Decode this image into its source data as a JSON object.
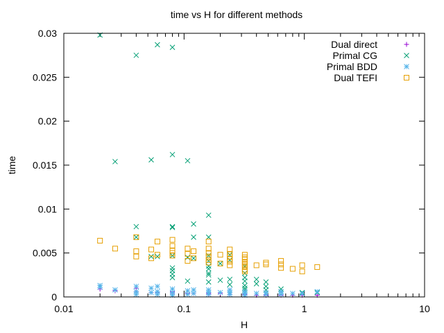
{
  "chart_data": {
    "type": "scatter",
    "title": "time vs H for different methods",
    "xlabel": "H",
    "ylabel": "time",
    "xscale": "log",
    "xlim": [
      0.01,
      10
    ],
    "ylim": [
      0,
      0.03
    ],
    "x_ticks": [
      {
        "value": 0.01,
        "label": "0.01"
      },
      {
        "value": 0.1,
        "label": "0.1"
      },
      {
        "value": 1,
        "label": "1"
      },
      {
        "value": 10,
        "label": "10"
      }
    ],
    "y_ticks": [
      {
        "value": 0,
        "label": "0"
      },
      {
        "value": 0.005,
        "label": "0.005"
      },
      {
        "value": 0.01,
        "label": "0.01"
      },
      {
        "value": 0.015,
        "label": "0.015"
      },
      {
        "value": 0.02,
        "label": "0.02"
      },
      {
        "value": 0.025,
        "label": "0.025"
      },
      {
        "value": 0.03,
        "label": "0.03"
      }
    ],
    "legend": "top-right",
    "grid": false,
    "series": [
      {
        "name": "Dual direct",
        "marker": "plus",
        "color": "#9400d3",
        "points": [
          [
            0.02,
            0.0009
          ],
          [
            0.0267,
            0.0007
          ],
          [
            0.04,
            0.0006
          ],
          [
            0.04,
            0.001
          ],
          [
            0.0533,
            0.0005
          ],
          [
            0.06,
            0.0005
          ],
          [
            0.08,
            0.0006
          ],
          [
            0.08,
            0.0004
          ],
          [
            0.107,
            0.0004
          ],
          [
            0.12,
            0.0004
          ],
          [
            0.16,
            0.0004
          ],
          [
            0.16,
            0.0003
          ],
          [
            0.2,
            0.0004
          ],
          [
            0.24,
            0.0003
          ],
          [
            0.32,
            0.0003
          ],
          [
            0.32,
            0.0002
          ],
          [
            0.4,
            0.0002
          ],
          [
            0.48,
            0.0002
          ],
          [
            0.64,
            0.0002
          ],
          [
            0.8,
            0.0002
          ],
          [
            0.96,
            0.0002
          ],
          [
            1.28,
            0.0002
          ]
        ]
      },
      {
        "name": "Primal CG",
        "marker": "cross",
        "color": "#009e73",
        "points": [
          [
            0.02,
            0.0298
          ],
          [
            0.0267,
            0.0154
          ],
          [
            0.04,
            0.0275
          ],
          [
            0.04,
            0.008
          ],
          [
            0.04,
            0.0068
          ],
          [
            0.0533,
            0.0156
          ],
          [
            0.0533,
            0.0046
          ],
          [
            0.06,
            0.0287
          ],
          [
            0.06,
            0.0046
          ],
          [
            0.08,
            0.0284
          ],
          [
            0.08,
            0.0162
          ],
          [
            0.08,
            0.008
          ],
          [
            0.08,
            0.0079
          ],
          [
            0.08,
            0.0047
          ],
          [
            0.08,
            0.0033
          ],
          [
            0.08,
            0.003
          ],
          [
            0.08,
            0.0026
          ],
          [
            0.08,
            0.0022
          ],
          [
            0.107,
            0.0155
          ],
          [
            0.107,
            0.0045
          ],
          [
            0.107,
            0.0018
          ],
          [
            0.12,
            0.0083
          ],
          [
            0.12,
            0.0068
          ],
          [
            0.12,
            0.0044
          ],
          [
            0.16,
            0.0093
          ],
          [
            0.16,
            0.0068
          ],
          [
            0.16,
            0.0047
          ],
          [
            0.16,
            0.0041
          ],
          [
            0.16,
            0.0035
          ],
          [
            0.16,
            0.0032
          ],
          [
            0.16,
            0.0027
          ],
          [
            0.16,
            0.0025
          ],
          [
            0.16,
            0.0017
          ],
          [
            0.2,
            0.0038
          ],
          [
            0.2,
            0.0019
          ],
          [
            0.24,
            0.0048
          ],
          [
            0.24,
            0.0042
          ],
          [
            0.24,
            0.002
          ],
          [
            0.24,
            0.0014
          ],
          [
            0.32,
            0.0035
          ],
          [
            0.32,
            0.0027
          ],
          [
            0.32,
            0.0022
          ],
          [
            0.32,
            0.0018
          ],
          [
            0.32,
            0.0013
          ],
          [
            0.32,
            0.001
          ],
          [
            0.32,
            0.0008
          ],
          [
            0.4,
            0.002
          ],
          [
            0.4,
            0.0015
          ],
          [
            0.48,
            0.0017
          ],
          [
            0.48,
            0.0012
          ],
          [
            0.48,
            0.0008
          ],
          [
            0.64,
            0.0009
          ],
          [
            0.64,
            0.0006
          ],
          [
            0.96,
            0.0005
          ],
          [
            0.96,
            0.0004
          ],
          [
            1.28,
            0.0005
          ]
        ]
      },
      {
        "name": "Primal BDD",
        "marker": "star",
        "color": "#56b4e9",
        "points": [
          [
            0.02,
            0.0013
          ],
          [
            0.02,
            0.0011
          ],
          [
            0.0267,
            0.0008
          ],
          [
            0.04,
            0.0012
          ],
          [
            0.04,
            0.0006
          ],
          [
            0.04,
            0.0003
          ],
          [
            0.0533,
            0.001
          ],
          [
            0.0533,
            0.0005
          ],
          [
            0.06,
            0.0012
          ],
          [
            0.06,
            0.0006
          ],
          [
            0.06,
            0.0003
          ],
          [
            0.08,
            0.0009
          ],
          [
            0.08,
            0.0005
          ],
          [
            0.08,
            0.0002
          ],
          [
            0.107,
            0.0007
          ],
          [
            0.107,
            0.0003
          ],
          [
            0.12,
            0.0008
          ],
          [
            0.12,
            0.0004
          ],
          [
            0.16,
            0.0008
          ],
          [
            0.16,
            0.0005
          ],
          [
            0.16,
            0.0003
          ],
          [
            0.2,
            0.0005
          ],
          [
            0.24,
            0.0008
          ],
          [
            0.24,
            0.0005
          ],
          [
            0.24,
            0.0003
          ],
          [
            0.32,
            0.0006
          ],
          [
            0.32,
            0.0004
          ],
          [
            0.32,
            0.0002
          ],
          [
            0.4,
            0.0004
          ],
          [
            0.48,
            0.0005
          ],
          [
            0.48,
            0.0003
          ],
          [
            0.64,
            0.0006
          ],
          [
            0.64,
            0.0003
          ],
          [
            0.8,
            0.0004
          ],
          [
            0.96,
            0.0004
          ],
          [
            1.28,
            0.0006
          ]
        ]
      },
      {
        "name": "Dual TEFI",
        "marker": "square",
        "color": "#e69f00",
        "points": [
          [
            0.02,
            0.0064
          ],
          [
            0.0267,
            0.0055
          ],
          [
            0.04,
            0.0068
          ],
          [
            0.04,
            0.0052
          ],
          [
            0.04,
            0.0046
          ],
          [
            0.0533,
            0.0054
          ],
          [
            0.0533,
            0.0044
          ],
          [
            0.06,
            0.0063
          ],
          [
            0.06,
            0.0048
          ],
          [
            0.08,
            0.0065
          ],
          [
            0.08,
            0.0058
          ],
          [
            0.08,
            0.0053
          ],
          [
            0.08,
            0.005
          ],
          [
            0.08,
            0.0047
          ],
          [
            0.107,
            0.0055
          ],
          [
            0.107,
            0.0049
          ],
          [
            0.107,
            0.0041
          ],
          [
            0.12,
            0.0052
          ],
          [
            0.12,
            0.0044
          ],
          [
            0.16,
            0.0063
          ],
          [
            0.16,
            0.0055
          ],
          [
            0.16,
            0.005
          ],
          [
            0.16,
            0.0046
          ],
          [
            0.16,
            0.0042
          ],
          [
            0.16,
            0.0039
          ],
          [
            0.2,
            0.0048
          ],
          [
            0.2,
            0.0038
          ],
          [
            0.24,
            0.0054
          ],
          [
            0.24,
            0.0049
          ],
          [
            0.24,
            0.0046
          ],
          [
            0.24,
            0.0043
          ],
          [
            0.24,
            0.004
          ],
          [
            0.24,
            0.0036
          ],
          [
            0.32,
            0.0048
          ],
          [
            0.32,
            0.0045
          ],
          [
            0.32,
            0.0043
          ],
          [
            0.32,
            0.004
          ],
          [
            0.32,
            0.0038
          ],
          [
            0.32,
            0.0036
          ],
          [
            0.32,
            0.0034
          ],
          [
            0.32,
            0.0031
          ],
          [
            0.32,
            0.0029
          ],
          [
            0.4,
            0.0036
          ],
          [
            0.48,
            0.0039
          ],
          [
            0.48,
            0.0037
          ],
          [
            0.64,
            0.0041
          ],
          [
            0.64,
            0.0037
          ],
          [
            0.64,
            0.0033
          ],
          [
            0.8,
            0.0032
          ],
          [
            0.96,
            0.0036
          ],
          [
            0.96,
            0.0029
          ],
          [
            1.28,
            0.0034
          ]
        ]
      }
    ]
  }
}
